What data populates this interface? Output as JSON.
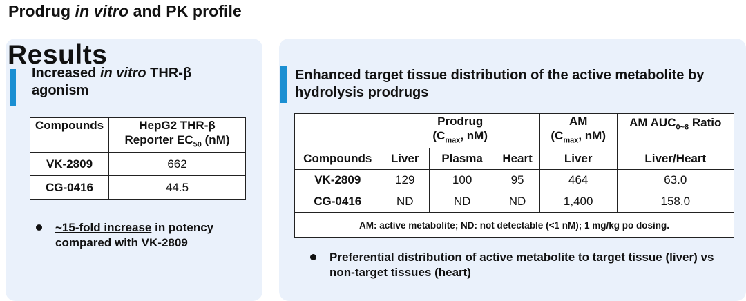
{
  "page": {
    "title_prefix": "Prodrug ",
    "title_italic": "in vitro",
    "title_suffix": " and PK profile"
  },
  "left": {
    "results": "Results",
    "heading_prefix": "Increased ",
    "heading_italic": "in vitro",
    "heading_suffix": " THR-β agonism",
    "table": {
      "col1": "Compounds",
      "col2_line1": "HepG2 THR-β",
      "col2_line2a": "Reporter EC",
      "col2_sub": "50",
      "col2_line2b": " (nM)",
      "rows": [
        {
          "compound": "VK-2809",
          "value": "662"
        },
        {
          "compound": "CG-0416",
          "value": "44.5"
        }
      ]
    },
    "bullet": {
      "underlined": "~15-fold increase",
      "rest": " in potency compared with VK-2809"
    }
  },
  "right": {
    "heading": "Enhanced target tissue distribution of the active metabolite by hydrolysis prodrugs",
    "table": {
      "prodrug_line1": "Prodrug",
      "prodrug_line2a": "(C",
      "prodrug_sub": "max",
      "prodrug_line2b": ", nM)",
      "am_line1": "AM",
      "am_line2a": "(C",
      "am_sub": "max",
      "am_line2b": ", nM)",
      "ratio_a": "AM AUC",
      "ratio_sub": "0~8",
      "ratio_b": " Ratio",
      "sub_headers": [
        "Compounds",
        "Liver",
        "Plasma",
        "Heart",
        "Liver",
        "Liver/Heart"
      ],
      "rows": [
        {
          "compound": "VK-2809",
          "liver": "129",
          "plasma": "100",
          "heart": "95",
          "am_liver": "464",
          "ratio": "63.0"
        },
        {
          "compound": "CG-0416",
          "liver": "ND",
          "plasma": "ND",
          "heart": "ND",
          "am_liver": "1,400",
          "ratio": "158.0"
        }
      ],
      "note": "AM: active metabolite; ND: not detectable (<1 nM); 1 mg/kg po dosing."
    },
    "bullet": {
      "underlined": "Preferential distribution",
      "rest": " of active metabolite to target tissue (liver) vs non-target tissues (heart)"
    }
  },
  "colors": {
    "accent": "#1b8fd2",
    "panel_background": "#eaf1fb"
  }
}
